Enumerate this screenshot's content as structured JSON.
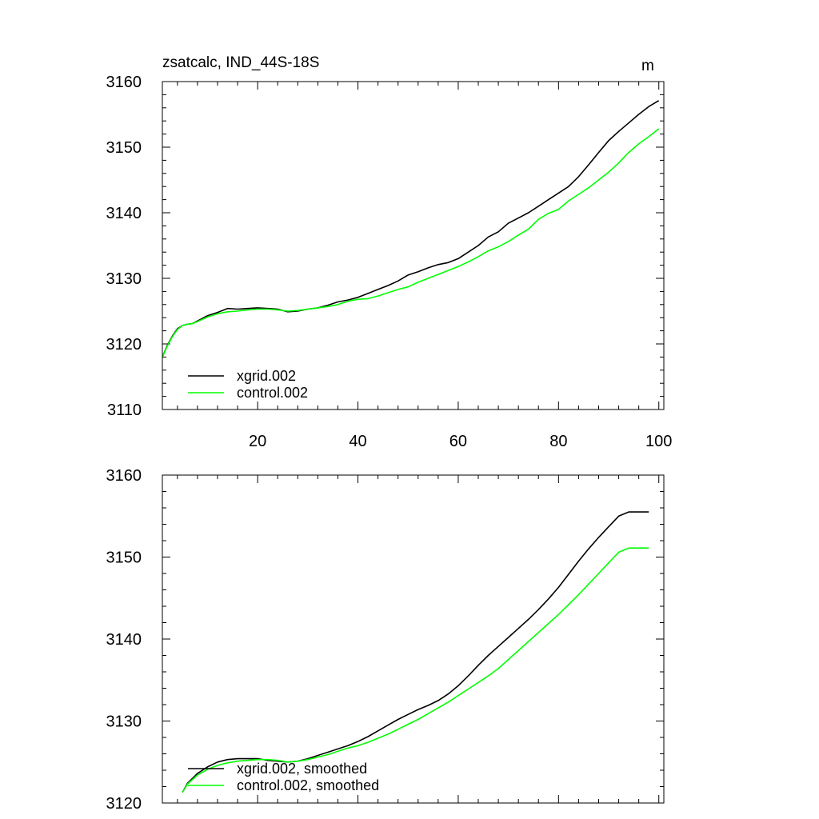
{
  "chart_data": [
    {
      "type": "line",
      "title": "zsatcalc, IND_44S-18S",
      "units": "m",
      "xlim": [
        1,
        101
      ],
      "ylim": [
        3110,
        3160
      ],
      "xticks": [
        20,
        40,
        60,
        80,
        100
      ],
      "xtick_labels": [
        "20",
        "40",
        "60",
        "80",
        "100"
      ],
      "yticks": [
        3110,
        3120,
        3130,
        3140,
        3150,
        3160
      ],
      "ytick_labels": [
        "3110",
        "3120",
        "3130",
        "3140",
        "3150",
        "3160"
      ],
      "legend_position": "bottom-left",
      "series": [
        {
          "name": "xgrid.002",
          "color": "#000000",
          "x": [
            1,
            2,
            3,
            4,
            5,
            6,
            7,
            8,
            10,
            12,
            14,
            16,
            18,
            20,
            22,
            24,
            26,
            28,
            30,
            32,
            34,
            36,
            38,
            40,
            42,
            44,
            46,
            48,
            50,
            52,
            54,
            56,
            58,
            60,
            62,
            64,
            66,
            68,
            70,
            72,
            74,
            76,
            78,
            80,
            82,
            84,
            86,
            88,
            90,
            92,
            94,
            96,
            98,
            100
          ],
          "values": [
            3118.0,
            3119.8,
            3121.2,
            3122.3,
            3122.8,
            3123.0,
            3123.1,
            3123.5,
            3124.3,
            3124.8,
            3125.4,
            3125.3,
            3125.4,
            3125.5,
            3125.4,
            3125.3,
            3124.9,
            3125.0,
            3125.3,
            3125.5,
            3125.9,
            3126.4,
            3126.7,
            3127.1,
            3127.7,
            3128.3,
            3128.9,
            3129.6,
            3130.5,
            3131.0,
            3131.6,
            3132.1,
            3132.4,
            3133.0,
            3134.0,
            3135.0,
            3136.3,
            3137.1,
            3138.4,
            3139.2,
            3140.0,
            3141.0,
            3142.0,
            3143.0,
            3144.0,
            3145.5,
            3147.3,
            3149.2,
            3151.0,
            3152.4,
            3153.7,
            3155.0,
            3156.2,
            3157.1
          ]
        },
        {
          "name": "control.002",
          "color": "#00ff00",
          "x": [
            1,
            2,
            3,
            4,
            5,
            6,
            7,
            8,
            10,
            12,
            14,
            16,
            18,
            20,
            22,
            24,
            26,
            28,
            30,
            32,
            34,
            36,
            38,
            40,
            42,
            44,
            46,
            48,
            50,
            52,
            54,
            56,
            58,
            60,
            62,
            64,
            66,
            68,
            70,
            72,
            74,
            76,
            78,
            80,
            82,
            84,
            86,
            88,
            90,
            92,
            94,
            96,
            98,
            100
          ],
          "values": [
            3118.0,
            3119.7,
            3121.1,
            3122.2,
            3122.8,
            3123.0,
            3123.1,
            3123.4,
            3124.1,
            3124.6,
            3124.9,
            3125.0,
            3125.2,
            3125.3,
            3125.3,
            3125.2,
            3125.0,
            3125.1,
            3125.3,
            3125.5,
            3125.7,
            3126.0,
            3126.5,
            3126.8,
            3126.9,
            3127.3,
            3127.8,
            3128.3,
            3128.7,
            3129.4,
            3130.0,
            3130.6,
            3131.2,
            3131.8,
            3132.5,
            3133.3,
            3134.2,
            3134.8,
            3135.6,
            3136.6,
            3137.5,
            3139.0,
            3139.9,
            3140.5,
            3141.8,
            3142.8,
            3143.8,
            3145.0,
            3146.2,
            3147.6,
            3149.2,
            3150.5,
            3151.6,
            3152.8
          ]
        }
      ]
    },
    {
      "type": "line",
      "title": "",
      "xlim": [
        1,
        101
      ],
      "ylim": [
        3120,
        3160
      ],
      "xticks": [
        20,
        40,
        60,
        80,
        100
      ],
      "yticks": [
        3120,
        3130,
        3140,
        3150,
        3160
      ],
      "ytick_labels": [
        "3120",
        "3130",
        "3140",
        "3150",
        "3160"
      ],
      "legend_position": "bottom-left",
      "series": [
        {
          "name": "xgrid.002, smoothed",
          "color": "#000000",
          "x": [
            5,
            6,
            8,
            10,
            12,
            14,
            16,
            18,
            20,
            22,
            24,
            26,
            28,
            30,
            32,
            34,
            36,
            38,
            40,
            42,
            44,
            46,
            48,
            50,
            52,
            54,
            56,
            58,
            60,
            62,
            64,
            66,
            68,
            70,
            72,
            74,
            76,
            78,
            80,
            82,
            84,
            86,
            88,
            90,
            92,
            94,
            96,
            98
          ],
          "values": [
            3121.3,
            3122.4,
            3123.6,
            3124.4,
            3125.0,
            3125.3,
            3125.4,
            3125.4,
            3125.4,
            3125.2,
            3125.1,
            3125.0,
            3125.1,
            3125.4,
            3125.8,
            3126.2,
            3126.6,
            3127.0,
            3127.5,
            3128.1,
            3128.8,
            3129.5,
            3130.2,
            3130.8,
            3131.4,
            3131.9,
            3132.5,
            3133.3,
            3134.3,
            3135.5,
            3136.8,
            3138.0,
            3139.1,
            3140.2,
            3141.3,
            3142.4,
            3143.6,
            3144.9,
            3146.3,
            3147.9,
            3149.5,
            3151.0,
            3152.4,
            3153.7,
            3155.0,
            3155.5,
            3155.5,
            3155.5
          ]
        },
        {
          "name": "control.002, smoothed",
          "color": "#00ff00",
          "x": [
            5,
            6,
            8,
            10,
            12,
            14,
            16,
            18,
            20,
            22,
            24,
            26,
            28,
            30,
            32,
            34,
            36,
            38,
            40,
            42,
            44,
            46,
            48,
            50,
            52,
            54,
            56,
            58,
            60,
            62,
            64,
            66,
            68,
            70,
            72,
            74,
            76,
            78,
            80,
            82,
            84,
            86,
            88,
            90,
            92,
            94,
            96,
            98
          ],
          "values": [
            3121.3,
            3122.3,
            3123.4,
            3124.1,
            3124.6,
            3124.9,
            3125.1,
            3125.2,
            3125.3,
            3125.3,
            3125.2,
            3125.0,
            3125.1,
            3125.3,
            3125.6,
            3125.9,
            3126.3,
            3126.7,
            3127.0,
            3127.4,
            3127.9,
            3128.4,
            3129.0,
            3129.6,
            3130.2,
            3130.9,
            3131.6,
            3132.3,
            3133.1,
            3133.9,
            3134.7,
            3135.5,
            3136.4,
            3137.5,
            3138.6,
            3139.7,
            3140.8,
            3141.9,
            3143.0,
            3144.2,
            3145.4,
            3146.7,
            3148.0,
            3149.3,
            3150.6,
            3151.1,
            3151.1,
            3151.1
          ]
        }
      ]
    }
  ]
}
